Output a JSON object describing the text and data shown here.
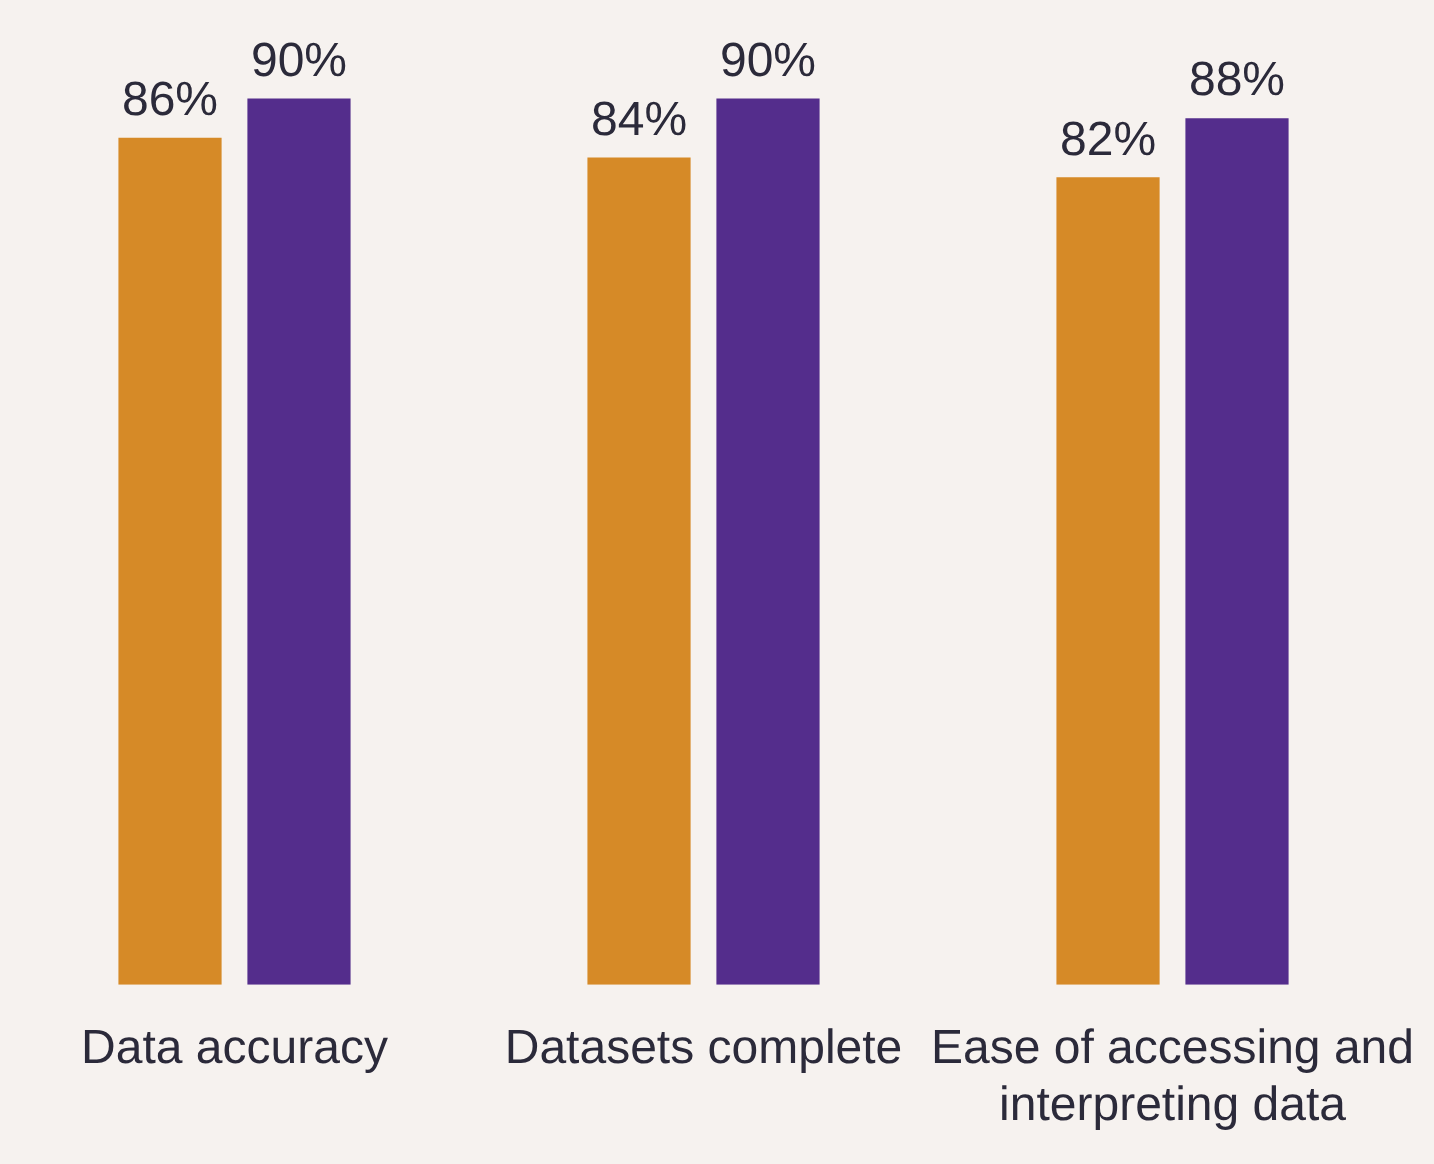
{
  "chart_data": {
    "type": "bar",
    "categories": [
      "Data accuracy",
      "Datasets complete",
      "Ease of accessing and interpreting data"
    ],
    "series": [
      {
        "color": "#d68a27",
        "values": [
          86,
          84,
          82
        ],
        "value_labels": [
          "86%",
          "84%",
          "82%"
        ]
      },
      {
        "color": "#542d8c",
        "values": [
          90,
          90,
          88
        ],
        "value_labels": [
          "90%",
          "90%",
          "88%"
        ]
      }
    ]
  }
}
